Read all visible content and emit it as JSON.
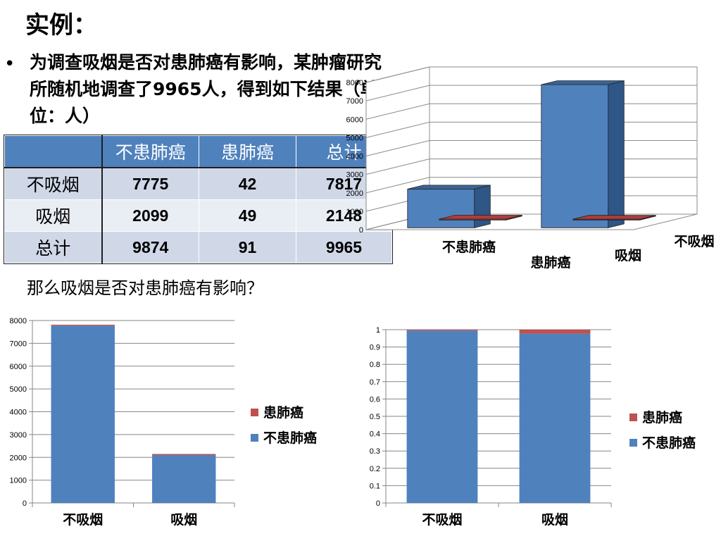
{
  "slide": {
    "title": "实例：",
    "bullet": "•",
    "intro": "为调查吸烟是否对患肺癌有影响，某肿瘤研究所随机地调查了9965人，得到如下结果（单位：人）",
    "question": "那么吸烟是否对患肺癌有影响？"
  },
  "table": {
    "headers": [
      "",
      "不患肺癌",
      "患肺癌",
      "总计"
    ],
    "rows": [
      [
        "不吸烟",
        "7775",
        "42",
        "7817"
      ],
      [
        "吸烟",
        "2099",
        "49",
        "2148"
      ],
      [
        "总计",
        "9874",
        "91",
        "9965"
      ]
    ]
  },
  "colors": {
    "blue": "#4f81bd",
    "red": "#c0504d",
    "header": "#4f81bd",
    "row_odd": "#d0d8e8",
    "row_even": "#e9edf4"
  },
  "chart_data": [
    {
      "type": "bar",
      "subtype": "3d-clustered",
      "rows": [
        "不患肺癌",
        "患肺癌"
      ],
      "categories": [
        "吸烟",
        "不吸烟"
      ],
      "series": [
        {
          "name": "不患肺癌",
          "values": [
            2099,
            7775
          ]
        },
        {
          "name": "患肺癌",
          "values": [
            49,
            42
          ]
        }
      ],
      "ylim": [
        0,
        8000
      ],
      "yticks": [
        "0",
        "1000",
        "2000",
        "3000",
        "4000",
        "5000",
        "6000",
        "7000",
        "8000"
      ],
      "grid": true,
      "legend": "none"
    },
    {
      "type": "bar",
      "subtype": "stacked",
      "categories": [
        "不吸烟",
        "吸烟"
      ],
      "series": [
        {
          "name": "不患肺癌",
          "values": [
            7775,
            2099
          ]
        },
        {
          "name": "患肺癌",
          "values": [
            42,
            49
          ]
        }
      ],
      "ylim": [
        0,
        8000
      ],
      "yticks": [
        "0",
        "1000",
        "2000",
        "3000",
        "4000",
        "5000",
        "6000",
        "7000",
        "8000"
      ],
      "grid": true,
      "legend": "right",
      "legend_entries": [
        "患肺癌",
        "不患肺癌"
      ]
    },
    {
      "type": "bar",
      "subtype": "stacked-100",
      "categories": [
        "不吸烟",
        "吸烟"
      ],
      "series": [
        {
          "name": "不患肺癌",
          "values": [
            0.9946,
            0.9772
          ]
        },
        {
          "name": "患肺癌",
          "values": [
            0.0054,
            0.0228
          ]
        }
      ],
      "ylim": [
        0,
        1
      ],
      "yticks": [
        "0",
        "0.1",
        "0.2",
        "0.3",
        "0.4",
        "0.5",
        "0.6",
        "0.7",
        "0.8",
        "0.9",
        "1"
      ],
      "grid": true,
      "legend": "right",
      "legend_entries": [
        "患肺癌",
        "不患肺癌"
      ]
    }
  ]
}
